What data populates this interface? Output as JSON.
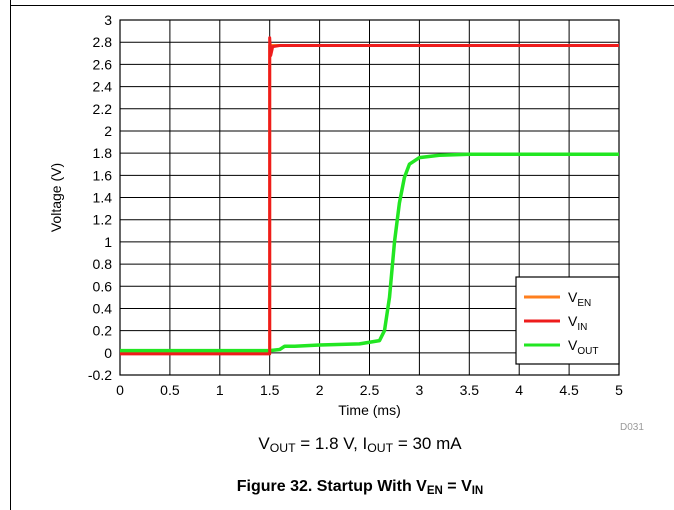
{
  "chart_data": {
    "type": "line",
    "title": "",
    "xlabel": "Time (ms)",
    "ylabel": "Voltage (V)",
    "xlim": [
      0,
      5
    ],
    "ylim": [
      -0.2,
      3
    ],
    "x_ticks": [
      "0",
      "0.5",
      "1",
      "1.5",
      "2",
      "2.5",
      "3",
      "3.5",
      "4",
      "4.5",
      "5"
    ],
    "y_ticks": [
      "-0.2",
      "0",
      "0.2",
      "0.4",
      "0.6",
      "0.8",
      "1",
      "1.2",
      "1.4",
      "1.6",
      "1.8",
      "2",
      "2.2",
      "2.4",
      "2.6",
      "2.8",
      "3"
    ],
    "grid": true,
    "legend_position": "bottom-right",
    "series": [
      {
        "name_main": "V",
        "name_sub": "EN",
        "color": "#ff7f1e",
        "x": [
          0,
          1.5,
          1.5,
          1.52,
          1.6,
          5
        ],
        "y": [
          0.0,
          0.0,
          2.77,
          2.77,
          2.77,
          2.77
        ]
      },
      {
        "name_main": "V",
        "name_sub": "IN",
        "color": "#ee1c1c",
        "x": [
          0,
          1.5,
          1.5,
          1.51,
          1.53,
          1.6,
          5
        ],
        "y": [
          -0.01,
          -0.01,
          2.84,
          2.68,
          2.76,
          2.77,
          2.77
        ]
      },
      {
        "name_main": "V",
        "name_sub": "OUT",
        "color": "#22e622",
        "x": [
          0,
          1.5,
          1.6,
          1.65,
          1.75,
          2.0,
          2.4,
          2.6,
          2.65,
          2.7,
          2.75,
          2.8,
          2.85,
          2.9,
          3.0,
          3.2,
          3.5,
          4.0,
          5.0
        ],
        "y": [
          0.02,
          0.02,
          0.03,
          0.06,
          0.06,
          0.07,
          0.08,
          0.11,
          0.2,
          0.5,
          1.0,
          1.35,
          1.58,
          1.7,
          1.76,
          1.78,
          1.79,
          1.79,
          1.79
        ]
      }
    ]
  },
  "caption": {
    "part1_main": "V",
    "part1_sub": "OUT",
    "part1_rest": " = 1.8 V, ",
    "part2_main": "I",
    "part2_sub": "OUT",
    "part2_rest": " = 30 mA"
  },
  "figure_caption": {
    "prefix": "Figure 32. Startup With ",
    "a_main": "V",
    "a_sub": "EN",
    "eq": " = ",
    "b_main": "V",
    "b_sub": "IN"
  },
  "doc_code": "D031"
}
